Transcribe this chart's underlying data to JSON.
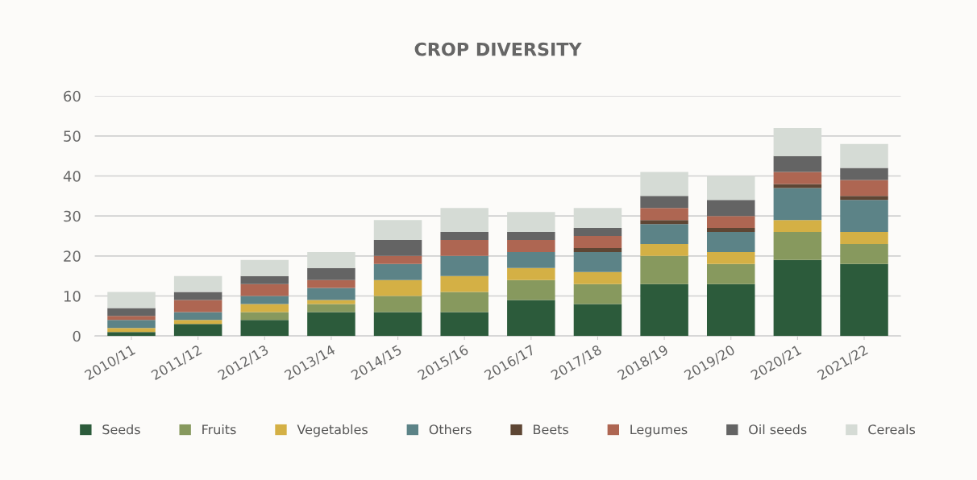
{
  "chart_data": {
    "type": "bar",
    "title": "CROP DIVERSITY",
    "stacked": true,
    "grid": "y",
    "legend": "bottom",
    "categories": [
      "2010/11",
      "2011/12",
      "2012/13",
      "2013/14",
      "2014/15",
      "2015/16",
      "2016/17",
      "2017/18",
      "2018/19",
      "2019/20",
      "2020/21",
      "2021/22"
    ],
    "ylim": [
      0,
      60
    ],
    "yticks": [
      0,
      10,
      20,
      30,
      40,
      50,
      60
    ],
    "series": [
      {
        "name": "Seeds",
        "color": "#2c5b3b",
        "values": [
          1,
          3,
          4,
          6,
          6,
          6,
          9,
          8,
          13,
          13,
          19,
          18
        ]
      },
      {
        "name": "Fruits",
        "color": "#87995e",
        "values": [
          0,
          0,
          2,
          2,
          4,
          5,
          5,
          5,
          7,
          5,
          7,
          5
        ]
      },
      {
        "name": "Vegetables",
        "color": "#d4b045",
        "values": [
          1,
          1,
          2,
          1,
          4,
          4,
          3,
          3,
          3,
          3,
          3,
          3
        ]
      },
      {
        "name": "Others",
        "color": "#5c8387",
        "values": [
          2,
          2,
          2,
          3,
          4,
          5,
          4,
          5,
          5,
          5,
          8,
          8
        ]
      },
      {
        "name": "Beets",
        "color": "#5e4634",
        "values": [
          0,
          0,
          0,
          0,
          0,
          0,
          0,
          1,
          1,
          1,
          1,
          1
        ]
      },
      {
        "name": "Legumes",
        "color": "#ae6652",
        "values": [
          1,
          3,
          3,
          2,
          2,
          4,
          3,
          3,
          3,
          3,
          3,
          4
        ]
      },
      {
        "name": "Oil seeds",
        "color": "#646464",
        "values": [
          2,
          2,
          2,
          3,
          4,
          2,
          2,
          2,
          3,
          4,
          4,
          3
        ]
      },
      {
        "name": "Cereals",
        "color": "#d5dbd5",
        "values": [
          4,
          4,
          4,
          4,
          5,
          6,
          5,
          5,
          6,
          6,
          7,
          6
        ]
      }
    ]
  }
}
